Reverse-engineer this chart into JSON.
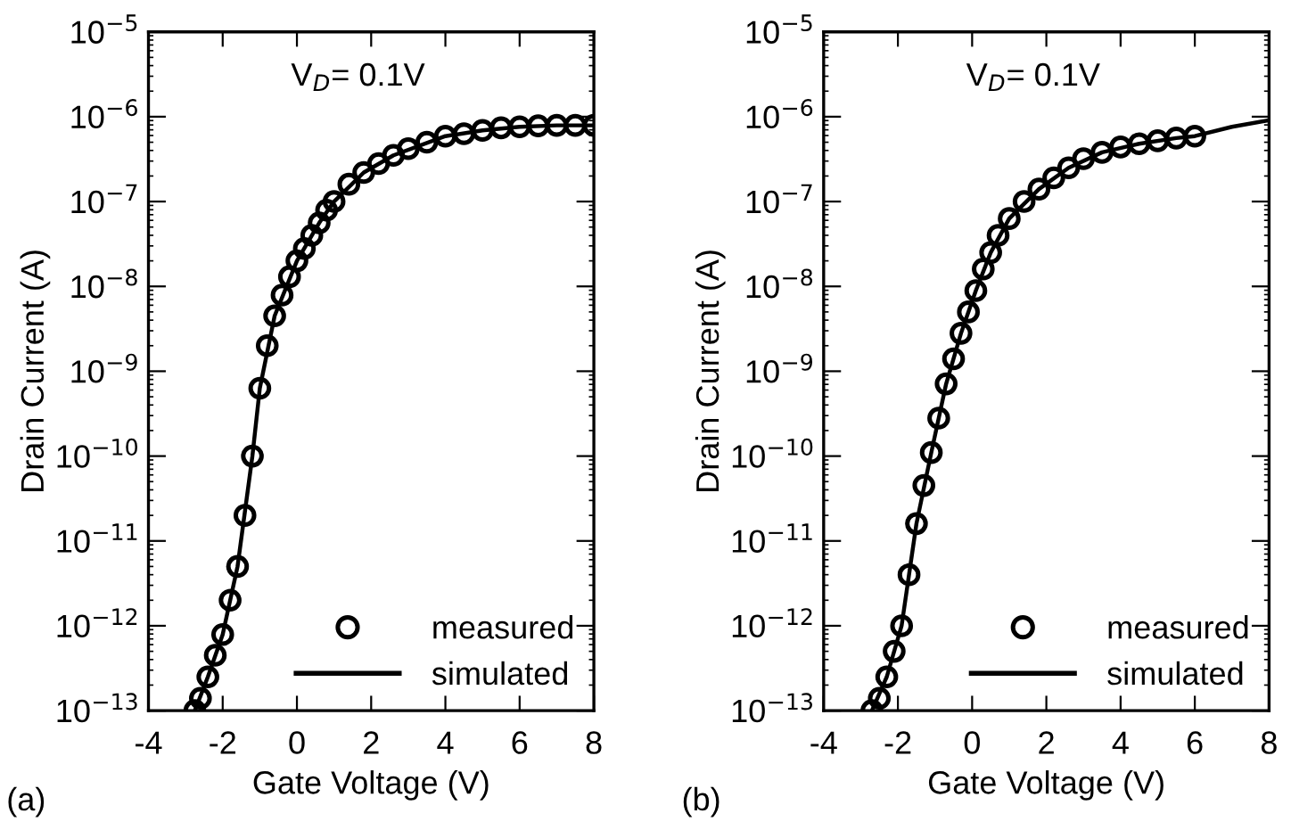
{
  "chart_data": [
    {
      "type": "scatter",
      "xlabel": "Gate Voltage (V)",
      "ylabel": "Drain Current (A)",
      "log": "y",
      "xlim": [
        -4,
        8
      ],
      "xticks": [
        -4,
        -2,
        0,
        2,
        4,
        6,
        8
      ],
      "ylim": [
        1e-13,
        1e-05
      ],
      "yticks": [
        {
          "value": 1e-13,
          "label": "10$^{−13}$"
        },
        {
          "value": 1e-12,
          "label": "10$^{−12}$"
        },
        {
          "value": 1e-11,
          "label": "10$^{−11}$"
        },
        {
          "value": 1e-10,
          "label": "10$^{−10}$"
        },
        {
          "value": 1e-09,
          "label": "10$^{−9}$"
        },
        {
          "value": 1e-08,
          "label": "10$^{−8}$"
        },
        {
          "value": 1e-07,
          "label": "10$^{−7}$"
        },
        {
          "value": 1e-06,
          "label": "10$^{−6}$"
        },
        {
          "value": 1e-05,
          "label": "10$^{−5}$"
        }
      ],
      "annotations": [
        "V$_{D}$= 0.1V",
        "(a)"
      ],
      "legend": "bottom right",
      "grid": false,
      "series": [
        {
          "name": "measured",
          "marker": "circle",
          "color": "#000000",
          "x": [
            -2.75,
            -2.6,
            -2.4,
            -2.2,
            -2.0,
            -1.8,
            -1.6,
            -1.4,
            -1.2,
            -1.0,
            -0.8,
            -0.6,
            -0.4,
            -0.2,
            0,
            0.2,
            0.4,
            0.6,
            0.8,
            1.0,
            1.4,
            1.8,
            2.2,
            2.6,
            3.0,
            3.5,
            4.0,
            4.5,
            5.0,
            5.5,
            6.0,
            6.5,
            7.0,
            7.5,
            8.0
          ],
          "values": [
            1e-13,
            1.4e-13,
            2.5e-13,
            4.5e-13,
            7.9e-13,
            2e-12,
            5e-12,
            2e-11,
            1e-10,
            6.3e-10,
            2e-09,
            4.5e-09,
            7.9e-09,
            1.3e-08,
            2e-08,
            2.8e-08,
            4e-08,
            5.6e-08,
            7.9e-08,
            1e-07,
            1.6e-07,
            2.2e-07,
            2.8e-07,
            3.5e-07,
            4.2e-07,
            5e-07,
            5.9e-07,
            6.3e-07,
            6.9e-07,
            7.4e-07,
            7.6e-07,
            7.8e-07,
            7.9e-07,
            7.9e-07,
            7.9e-07
          ]
        },
        {
          "name": "simulated",
          "type": "line",
          "line_style": "solid",
          "color": "#000000",
          "x": [
            -2.75,
            -2.4,
            -2.0,
            -1.6,
            -1.2,
            -1.0,
            -0.6,
            0,
            0.6,
            1.0,
            1.8,
            2.6,
            4.0,
            5.0,
            6.0,
            7.0,
            8.0
          ],
          "values": [
            1e-13,
            2.5e-13,
            7.9e-13,
            5e-12,
            1e-10,
            6.3e-10,
            4.5e-09,
            2e-08,
            5.6e-08,
            1e-07,
            2.2e-07,
            3.5e-07,
            5.9e-07,
            6.9e-07,
            7.6e-07,
            7.9e-07,
            7.9e-07
          ]
        }
      ]
    },
    {
      "type": "scatter",
      "xlabel": "Gate Voltage (V)",
      "ylabel": "Drain Current (A)",
      "log": "y",
      "xlim": [
        -4,
        8
      ],
      "xticks": [
        -4,
        -2,
        0,
        2,
        4,
        6,
        8
      ],
      "ylim": [
        1e-13,
        1e-05
      ],
      "yticks": [
        {
          "value": 1e-13,
          "label": "10$^{−13}$"
        },
        {
          "value": 1e-12,
          "label": "10$^{−12}$"
        },
        {
          "value": 1e-11,
          "label": "10$^{−11}$"
        },
        {
          "value": 1e-10,
          "label": "10$^{−10}$"
        },
        {
          "value": 1e-09,
          "label": "10$^{−9}$"
        },
        {
          "value": 1e-08,
          "label": "10$^{−8}$"
        },
        {
          "value": 1e-07,
          "label": "10$^{−7}$"
        },
        {
          "value": 1e-06,
          "label": "10$^{−6}$"
        },
        {
          "value": 1e-05,
          "label": "10$^{−5}$"
        }
      ],
      "annotations": [
        "V$_{D}$= 0.1V",
        "(b)"
      ],
      "legend": "bottom right",
      "grid": false,
      "series": [
        {
          "name": "measured",
          "marker": "circle",
          "color": "#000000",
          "x": [
            -2.7,
            -2.5,
            -2.3,
            -2.1,
            -1.9,
            -1.7,
            -1.5,
            -1.3,
            -1.1,
            -0.9,
            -0.7,
            -0.5,
            -0.3,
            -0.1,
            0.1,
            0.3,
            0.5,
            0.7,
            1.0,
            1.4,
            1.8,
            2.2,
            2.6,
            3.0,
            3.5,
            4.0,
            4.5,
            5.0,
            5.5,
            6.0
          ],
          "values": [
            1e-13,
            1.4e-13,
            2.5e-13,
            5e-13,
            1e-12,
            4e-12,
            1.6e-11,
            4.5e-11,
            1.1e-10,
            2.8e-10,
            7.1e-10,
            1.4e-09,
            2.8e-09,
            5e-09,
            8.9e-09,
            1.6e-08,
            2.5e-08,
            4e-08,
            6.3e-08,
            1e-07,
            1.4e-07,
            1.9e-07,
            2.5e-07,
            3.2e-07,
            3.8e-07,
            4.4e-07,
            4.8e-07,
            5.2e-07,
            5.6e-07,
            5.9e-07
          ]
        },
        {
          "name": "simulated",
          "type": "line",
          "line_style": "solid",
          "color": "#000000",
          "x": [
            -2.7,
            -2.3,
            -1.9,
            -1.5,
            -1.1,
            -0.7,
            -0.3,
            0.1,
            0.5,
            1.0,
            1.8,
            2.6,
            3.5,
            4.5,
            5.5,
            6.0,
            7.0,
            8.0
          ],
          "values": [
            1e-13,
            2.5e-13,
            1e-12,
            1.6e-11,
            1.1e-10,
            7.1e-10,
            2.8e-09,
            8.9e-09,
            2.5e-08,
            6.3e-08,
            1.4e-07,
            2.5e-07,
            3.8e-07,
            4.8e-07,
            5.6e-07,
            5.9e-07,
            7.6e-07,
            9.1e-07
          ]
        }
      ]
    }
  ]
}
